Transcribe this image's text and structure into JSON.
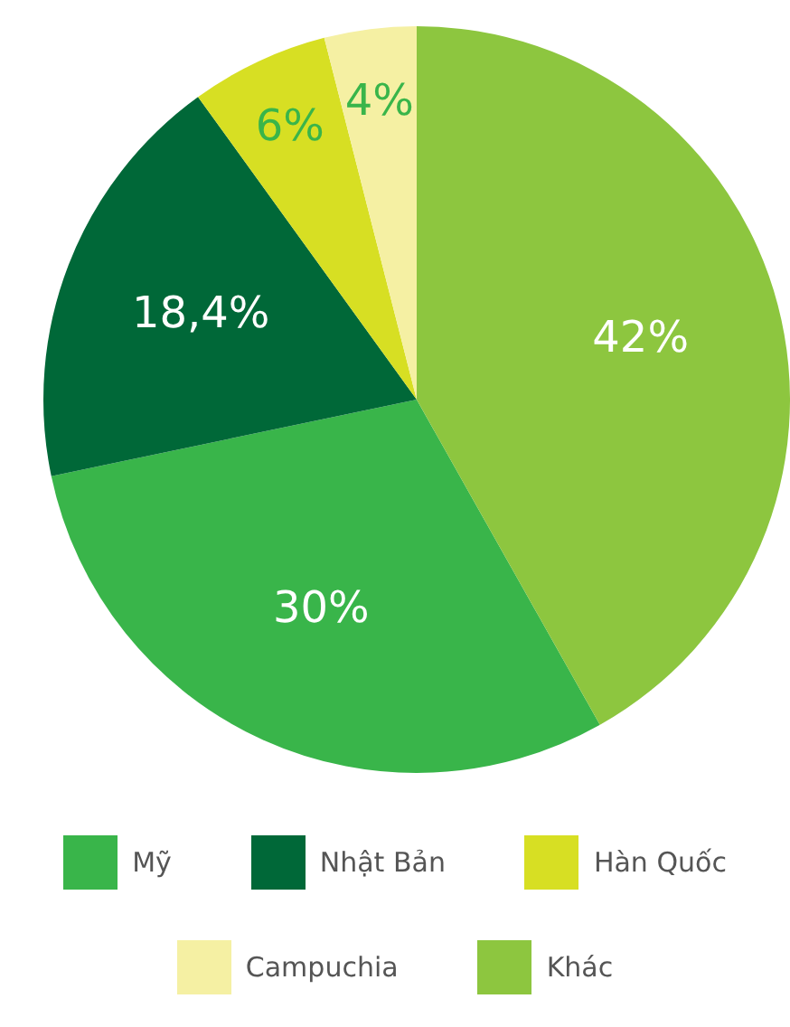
{
  "chart_data": {
    "type": "pie",
    "categories": [
      "Mỹ",
      "Nhật Bản",
      "Hàn Quốc",
      "Campuchia",
      "Khác"
    ],
    "values": [
      30,
      18.4,
      6,
      4,
      42
    ],
    "value_labels": [
      "30%",
      "18,4%",
      "6%",
      "4%",
      "42%"
    ],
    "colors": [
      "#39b54a",
      "#006838",
      "#d7df23",
      "#f5f0a3",
      "#8dc63f"
    ],
    "legend": "bottom"
  }
}
